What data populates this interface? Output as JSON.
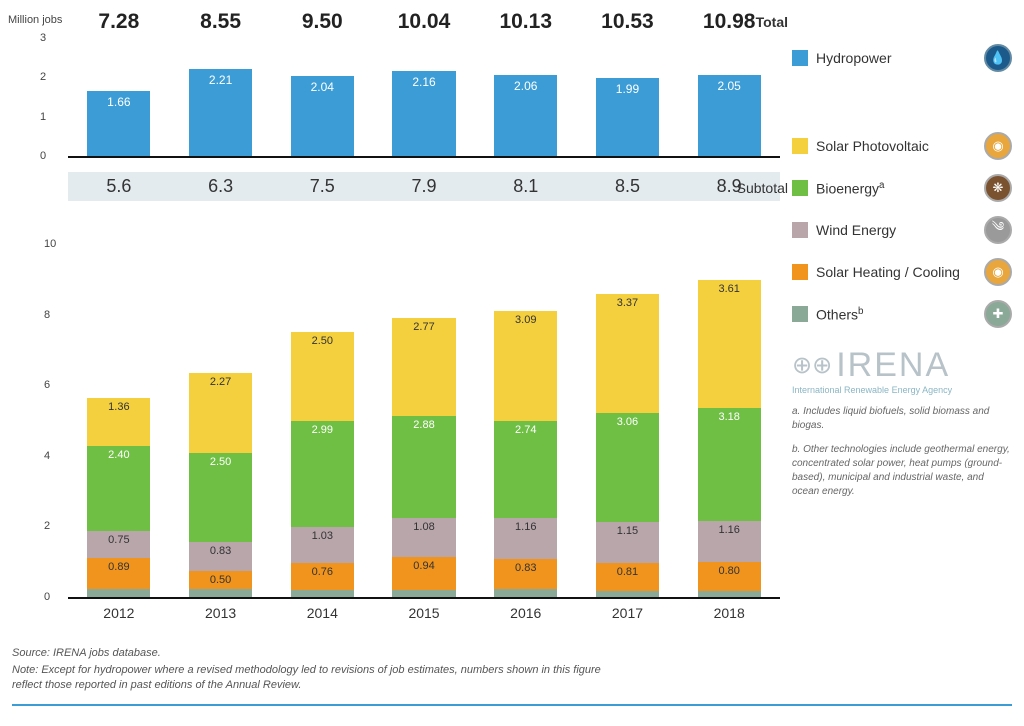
{
  "labels": {
    "ylabel": "Million jobs",
    "total": "Total",
    "subtotal": "Subtotal",
    "source": "Source: IRENA jobs database.",
    "note": "Note: Except for hydropower where a revised methodology led to revisions of job estimates, numbers shown in this figure reflect those reported in past editions of the Annual Review.",
    "footnote_a": "a. Includes liquid biofuels, solid biomass and biogas.",
    "footnote_b": "b. Other technologies include geothermal energy, concentrated solar power, heat pumps (ground-based), municipal and industrial waste, and ocean energy.",
    "irena": "IRENA",
    "irena_sub": "International Renewable Energy Agency"
  },
  "years": [
    "2012",
    "2013",
    "2014",
    "2015",
    "2016",
    "2017",
    "2018"
  ],
  "totals": [
    "7.28",
    "8.55",
    "9.50",
    "10.04",
    "10.13",
    "10.53",
    "10.98"
  ],
  "subtotals": [
    "5.6",
    "6.3",
    "7.5",
    "7.9",
    "8.1",
    "8.5",
    "8.9"
  ],
  "hydro": {
    "label": "Hydropower",
    "color": "#3b9cd6",
    "ymax": 3,
    "yticks": [
      0,
      1,
      2,
      3
    ],
    "values": [
      1.66,
      2.21,
      2.04,
      2.16,
      2.06,
      1.99,
      2.05
    ]
  },
  "main": {
    "ymax": 11,
    "yticks": [
      0,
      2,
      4,
      6,
      8,
      10
    ],
    "series": [
      {
        "key": "others",
        "label": "Others",
        "sup": "b",
        "color": "#8aa997",
        "icon_bg": "#8aa997",
        "text": "outside"
      },
      {
        "key": "heating",
        "label": "Solar Heating / Cooling",
        "color": "#f0941e",
        "icon_bg": "#e8a63c",
        "text": "dark-inside"
      },
      {
        "key": "wind",
        "label": "Wind Energy",
        "color": "#b8a6ab",
        "icon_bg": "#9a9a9a",
        "text": "dark-inside"
      },
      {
        "key": "bio",
        "label": "Bioenergy",
        "sup": "a",
        "color": "#6fbf44",
        "icon_bg": "#7a5230",
        "text": "inside"
      },
      {
        "key": "solar_pv",
        "label": "Solar Photovoltaic",
        "color": "#f4d03f",
        "icon_bg": "#e8a63c",
        "text": "dark-inside"
      }
    ],
    "data": {
      "others": [
        0.22,
        0.23,
        0.19,
        0.2,
        0.24,
        0.16,
        0.18
      ],
      "heating": [
        0.89,
        0.5,
        0.76,
        0.94,
        0.83,
        0.81,
        0.8
      ],
      "wind": [
        0.75,
        0.83,
        1.03,
        1.08,
        1.16,
        1.15,
        1.16
      ],
      "bio": [
        2.4,
        2.5,
        2.99,
        2.88,
        2.74,
        3.06,
        3.18
      ],
      "solar_pv": [
        1.36,
        2.27,
        2.5,
        2.77,
        3.09,
        3.37,
        3.61
      ]
    }
  },
  "colors": {
    "axis": "#111",
    "bg": "#ffffff",
    "subtotal_bg": "#e3ebee"
  }
}
